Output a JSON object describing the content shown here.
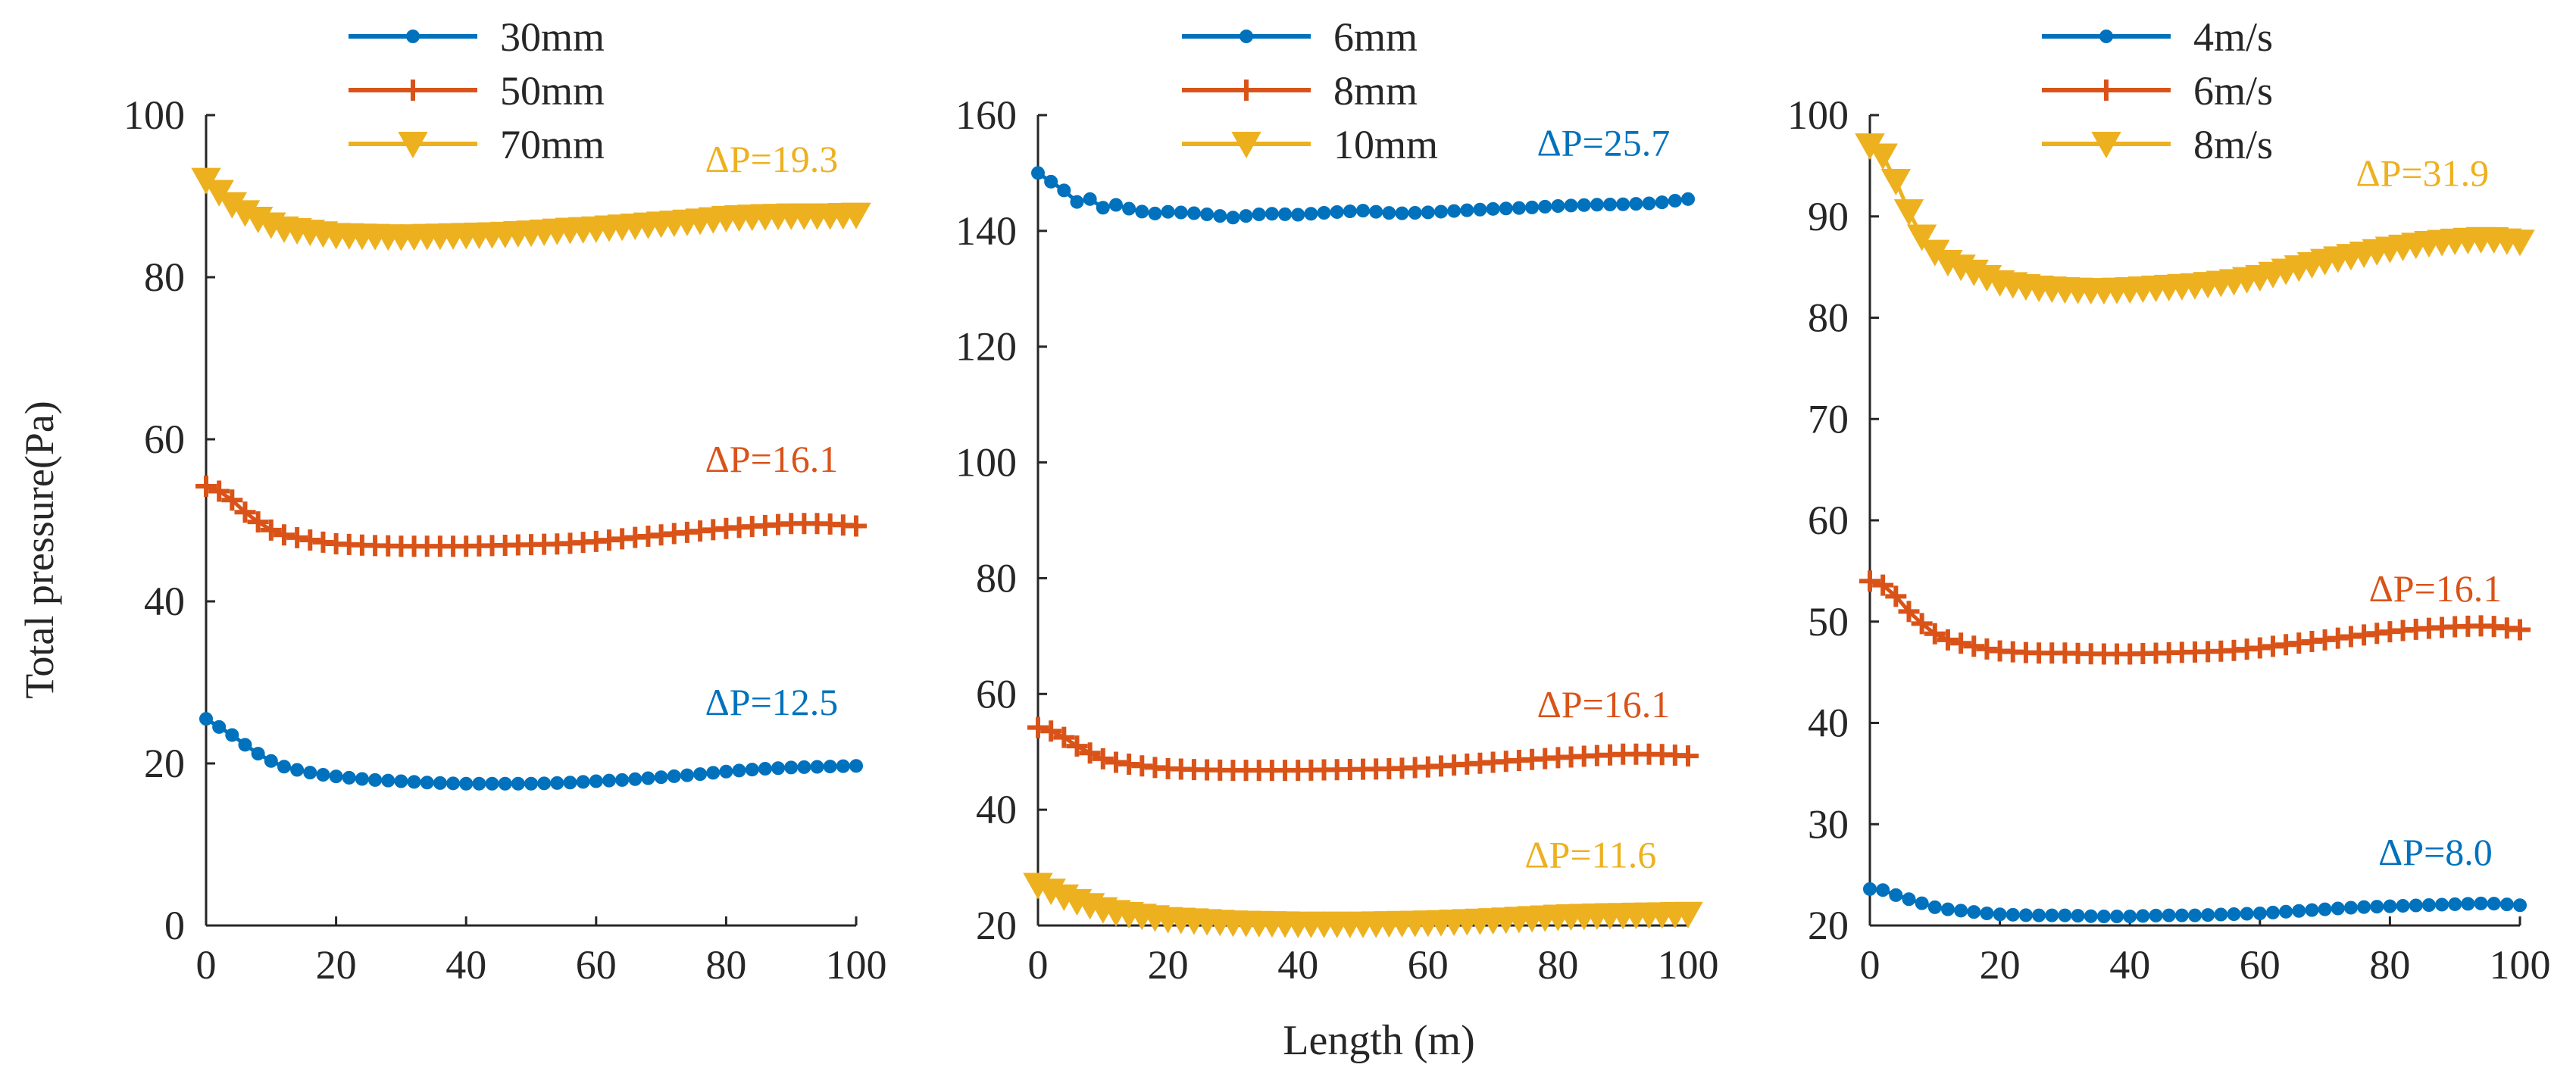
{
  "figure": {
    "ylabel": "Total pressure(Pa)",
    "xlabel": "Length (m)"
  },
  "colors": {
    "blue": "#0072BD",
    "orange": "#D95319",
    "yellow": "#EDB120",
    "axis": "#262626"
  },
  "chart_data": [
    {
      "type": "line",
      "title": "",
      "xlabel": "",
      "ylabel": "Total pressure(Pa)",
      "xlim": [
        0,
        100
      ],
      "ylim": [
        0,
        100
      ],
      "xticks": [
        0,
        20,
        40,
        60,
        80,
        100
      ],
      "yticks": [
        0,
        20,
        40,
        60,
        80,
        100
      ],
      "grid": false,
      "legend": "top-left",
      "x": [
        0,
        20,
        40,
        60,
        80,
        100
      ],
      "series": [
        {
          "name": "30mm",
          "color": "blue",
          "marker": "dot",
          "points": [
            [
              0,
              25.5
            ],
            [
              2,
              24.5
            ],
            [
              4,
              23.5
            ],
            [
              6,
              22.3
            ],
            [
              8,
              21.2
            ],
            [
              10,
              20.3
            ],
            [
              12,
              19.6
            ],
            [
              15,
              19
            ],
            [
              18,
              18.6
            ],
            [
              20,
              18.4
            ],
            [
              25,
              18
            ],
            [
              30,
              17.8
            ],
            [
              35,
              17.6
            ],
            [
              40,
              17.5
            ],
            [
              45,
              17.5
            ],
            [
              50,
              17.5
            ],
            [
              55,
              17.6
            ],
            [
              60,
              17.8
            ],
            [
              65,
              18
            ],
            [
              70,
              18.3
            ],
            [
              75,
              18.6
            ],
            [
              80,
              19
            ],
            [
              85,
              19.3
            ],
            [
              90,
              19.5
            ],
            [
              95,
              19.6
            ],
            [
              100,
              19.7
            ]
          ]
        },
        {
          "name": "50mm",
          "color": "orange",
          "marker": "plus",
          "points": [
            [
              0,
              54.2
            ],
            [
              2,
              53.6
            ],
            [
              4,
              52.5
            ],
            [
              6,
              51
            ],
            [
              8,
              49.8
            ],
            [
              10,
              48.8
            ],
            [
              12,
              48.2
            ],
            [
              15,
              47.7
            ],
            [
              18,
              47.3
            ],
            [
              20,
              47.1
            ],
            [
              25,
              46.9
            ],
            [
              30,
              46.8
            ],
            [
              35,
              46.8
            ],
            [
              40,
              46.8
            ],
            [
              45,
              46.9
            ],
            [
              50,
              47
            ],
            [
              55,
              47.1
            ],
            [
              60,
              47.4
            ],
            [
              65,
              47.8
            ],
            [
              70,
              48.2
            ],
            [
              75,
              48.6
            ],
            [
              80,
              49
            ],
            [
              85,
              49.3
            ],
            [
              90,
              49.6
            ],
            [
              95,
              49.6
            ],
            [
              100,
              49.3
            ]
          ]
        },
        {
          "name": "70mm",
          "color": "yellow",
          "marker": "triangle",
          "points": [
            [
              0,
              92
            ],
            [
              2,
              90.5
            ],
            [
              4,
              89
            ],
            [
              6,
              88
            ],
            [
              8,
              87.2
            ],
            [
              10,
              86.5
            ],
            [
              12,
              86
            ],
            [
              15,
              85.7
            ],
            [
              18,
              85.4
            ],
            [
              20,
              85.2
            ],
            [
              25,
              85.1
            ],
            [
              30,
              85
            ],
            [
              35,
              85.1
            ],
            [
              40,
              85.2
            ],
            [
              45,
              85.3
            ],
            [
              50,
              85.5
            ],
            [
              55,
              85.8
            ],
            [
              60,
              86
            ],
            [
              65,
              86.3
            ],
            [
              70,
              86.6
            ],
            [
              75,
              86.9
            ],
            [
              80,
              87.3
            ],
            [
              85,
              87.5
            ],
            [
              90,
              87.6
            ],
            [
              95,
              87.6
            ],
            [
              100,
              87.7
            ]
          ]
        }
      ],
      "annotations": [
        {
          "text": "ΔP=19.3",
          "color": "yellow",
          "x": 87,
          "y": 93
        },
        {
          "text": "ΔP=16.1",
          "color": "orange",
          "x": 87,
          "y": 56
        },
        {
          "text": "ΔP=12.5",
          "color": "blue",
          "x": 87,
          "y": 26
        }
      ]
    },
    {
      "type": "line",
      "title": "",
      "xlabel": "Length (m)",
      "ylabel": "",
      "xlim": [
        0,
        100
      ],
      "ylim": [
        20,
        160
      ],
      "xticks": [
        0,
        20,
        40,
        60,
        80,
        100
      ],
      "yticks": [
        20,
        40,
        60,
        80,
        100,
        120,
        140,
        160
      ],
      "grid": false,
      "legend": "top-left",
      "series": [
        {
          "name": "6mm",
          "color": "blue",
          "marker": "dot",
          "points": [
            [
              0,
              150
            ],
            [
              2,
              148.5
            ],
            [
              4,
              147
            ],
            [
              6,
              145
            ],
            [
              8,
              145.5
            ],
            [
              10,
              144
            ],
            [
              12,
              144.5
            ],
            [
              15,
              143.5
            ],
            [
              18,
              143
            ],
            [
              20,
              143.3
            ],
            [
              25,
              143
            ],
            [
              30,
              142.3
            ],
            [
              35,
              143
            ],
            [
              40,
              142.8
            ],
            [
              45,
              143.2
            ],
            [
              50,
              143.5
            ],
            [
              55,
              143
            ],
            [
              60,
              143.2
            ],
            [
              65,
              143.5
            ],
            [
              70,
              143.8
            ],
            [
              75,
              144
            ],
            [
              80,
              144.3
            ],
            [
              85,
              144.5
            ],
            [
              90,
              144.6
            ],
            [
              95,
              144.8
            ],
            [
              100,
              145.5
            ]
          ]
        },
        {
          "name": "8mm",
          "color": "orange",
          "marker": "plus",
          "points": [
            [
              0,
              54.2
            ],
            [
              2,
              53.6
            ],
            [
              4,
              52.5
            ],
            [
              6,
              51
            ],
            [
              8,
              49.8
            ],
            [
              10,
              48.8
            ],
            [
              12,
              48.2
            ],
            [
              15,
              47.7
            ],
            [
              18,
              47.3
            ],
            [
              20,
              47.1
            ],
            [
              25,
              46.9
            ],
            [
              30,
              46.8
            ],
            [
              35,
              46.8
            ],
            [
              40,
              46.8
            ],
            [
              45,
              46.9
            ],
            [
              50,
              47
            ],
            [
              55,
              47.1
            ],
            [
              60,
              47.4
            ],
            [
              65,
              47.8
            ],
            [
              70,
              48.2
            ],
            [
              75,
              48.6
            ],
            [
              80,
              49
            ],
            [
              85,
              49.3
            ],
            [
              90,
              49.6
            ],
            [
              95,
              49.6
            ],
            [
              100,
              49.3
            ]
          ]
        },
        {
          "name": "10mm",
          "color": "yellow",
          "marker": "triangle",
          "points": [
            [
              0,
              27
            ],
            [
              2,
              26
            ],
            [
              4,
              25
            ],
            [
              6,
              24.2
            ],
            [
              8,
              23.5
            ],
            [
              10,
              22.8
            ],
            [
              12,
              22.3
            ],
            [
              15,
              21.8
            ],
            [
              18,
              21.4
            ],
            [
              20,
              21.1
            ],
            [
              25,
              20.8
            ],
            [
              30,
              20.5
            ],
            [
              35,
              20.4
            ],
            [
              40,
              20.3
            ],
            [
              45,
              20.3
            ],
            [
              50,
              20.3
            ],
            [
              55,
              20.4
            ],
            [
              60,
              20.5
            ],
            [
              65,
              20.7
            ],
            [
              70,
              20.9
            ],
            [
              75,
              21.2
            ],
            [
              80,
              21.5
            ],
            [
              85,
              21.7
            ],
            [
              90,
              21.8
            ],
            [
              95,
              21.9
            ],
            [
              100,
              22
            ]
          ]
        }
      ],
      "annotations": [
        {
          "text": "ΔP=25.7",
          "color": "blue",
          "x": 87,
          "y": 153
        },
        {
          "text": "ΔP=16.1",
          "color": "orange",
          "x": 87,
          "y": 56
        },
        {
          "text": "ΔP=11.6",
          "color": "yellow",
          "x": 85,
          "y": 30
        }
      ]
    },
    {
      "type": "line",
      "title": "",
      "xlabel": "",
      "ylabel": "",
      "xlim": [
        0,
        100
      ],
      "ylim": [
        20,
        100
      ],
      "xticks": [
        0,
        20,
        40,
        60,
        80,
        100
      ],
      "yticks": [
        20,
        30,
        40,
        50,
        60,
        70,
        80,
        90,
        100
      ],
      "grid": false,
      "legend": "top-left",
      "series": [
        {
          "name": "4m/s",
          "color": "blue",
          "marker": "dot",
          "points": [
            [
              0,
              23.6
            ],
            [
              2,
              23.5
            ],
            [
              4,
              23
            ],
            [
              6,
              22.6
            ],
            [
              8,
              22.2
            ],
            [
              10,
              21.8
            ],
            [
              12,
              21.6
            ],
            [
              15,
              21.4
            ],
            [
              18,
              21.2
            ],
            [
              20,
              21.1
            ],
            [
              25,
              21
            ],
            [
              30,
              21
            ],
            [
              35,
              20.9
            ],
            [
              40,
              20.9
            ],
            [
              45,
              21
            ],
            [
              50,
              21
            ],
            [
              55,
              21.1
            ],
            [
              60,
              21.2
            ],
            [
              65,
              21.4
            ],
            [
              70,
              21.6
            ],
            [
              75,
              21.8
            ],
            [
              80,
              21.9
            ],
            [
              85,
              22
            ],
            [
              90,
              22.1
            ],
            [
              95,
              22.2
            ],
            [
              100,
              22
            ]
          ]
        },
        {
          "name": "6m/s",
          "color": "orange",
          "marker": "plus",
          "points": [
            [
              0,
              54
            ],
            [
              2,
              53.6
            ],
            [
              4,
              52.5
            ],
            [
              6,
              51
            ],
            [
              8,
              49.8
            ],
            [
              10,
              48.8
            ],
            [
              12,
              48.2
            ],
            [
              15,
              47.7
            ],
            [
              18,
              47.3
            ],
            [
              20,
              47.1
            ],
            [
              25,
              46.9
            ],
            [
              30,
              46.9
            ],
            [
              35,
              46.8
            ],
            [
              40,
              46.8
            ],
            [
              45,
              46.9
            ],
            [
              50,
              47
            ],
            [
              55,
              47.1
            ],
            [
              60,
              47.4
            ],
            [
              65,
              47.8
            ],
            [
              70,
              48.2
            ],
            [
              75,
              48.6
            ],
            [
              80,
              49
            ],
            [
              85,
              49.3
            ],
            [
              90,
              49.5
            ],
            [
              95,
              49.6
            ],
            [
              100,
              49.2
            ]
          ]
        },
        {
          "name": "8m/s",
          "color": "yellow",
          "marker": "triangle",
          "points": [
            [
              0,
              97
            ],
            [
              2,
              96
            ],
            [
              4,
              93.5
            ],
            [
              6,
              90.5
            ],
            [
              8,
              88
            ],
            [
              10,
              86.5
            ],
            [
              12,
              85.5
            ],
            [
              15,
              84.8
            ],
            [
              18,
              84
            ],
            [
              20,
              83.5
            ],
            [
              25,
              83
            ],
            [
              30,
              82.8
            ],
            [
              35,
              82.7
            ],
            [
              40,
              82.8
            ],
            [
              45,
              83
            ],
            [
              50,
              83.2
            ],
            [
              55,
              83.5
            ],
            [
              60,
              84
            ],
            [
              65,
              84.8
            ],
            [
              70,
              85.6
            ],
            [
              75,
              86.2
            ],
            [
              80,
              86.8
            ],
            [
              85,
              87.3
            ],
            [
              90,
              87.6
            ],
            [
              95,
              87.8
            ],
            [
              100,
              87.5
            ]
          ]
        }
      ],
      "annotations": [
        {
          "text": "ΔP=31.9",
          "color": "yellow",
          "x": 85,
          "y": 93
        },
        {
          "text": "ΔP=16.1",
          "color": "orange",
          "x": 87,
          "y": 52
        },
        {
          "text": "ΔP=8.0",
          "color": "blue",
          "x": 87,
          "y": 26
        }
      ]
    }
  ]
}
